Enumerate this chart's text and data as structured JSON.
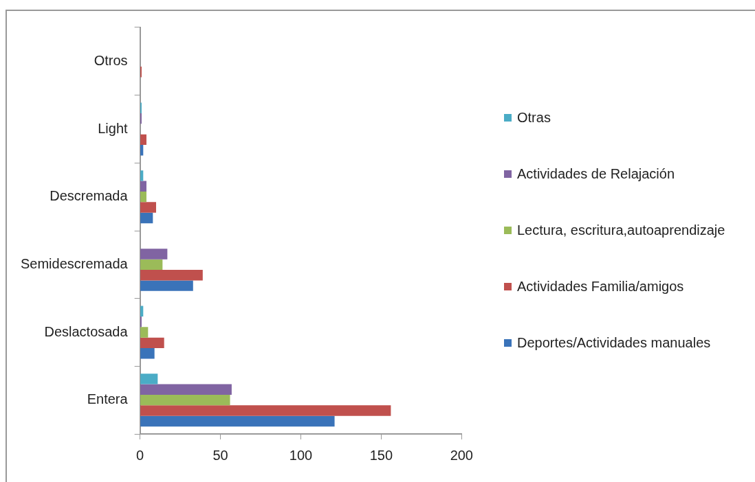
{
  "chart_data": {
    "type": "bar",
    "orientation": "horizontal",
    "categories": [
      "Otros",
      "Light",
      "Descremada",
      "Semidescremada",
      "Deslactosada",
      "Entera"
    ],
    "series": [
      {
        "name": "Otras",
        "color": "#4bacc6",
        "values": [
          0,
          1,
          2,
          0,
          2,
          11
        ]
      },
      {
        "name": "Actividades de Relajación",
        "color": "#8064a2",
        "values": [
          0,
          1,
          4,
          17,
          1,
          57
        ]
      },
      {
        "name": "Lectura, escritura,autoaprendizaje",
        "color": "#9bbb59",
        "values": [
          0,
          0,
          4,
          14,
          5,
          56
        ]
      },
      {
        "name": "Actividades Familia/amigos",
        "color": "#c0504d",
        "values": [
          1,
          4,
          10,
          39,
          15,
          156
        ]
      },
      {
        "name": "Deportes/Actividades manuales",
        "color": "#3a73b9",
        "values": [
          0,
          2,
          8,
          33,
          9,
          121
        ]
      }
    ],
    "xlim": [
      0,
      200
    ],
    "xticks": [
      0,
      50,
      100,
      150,
      200
    ],
    "grid": false,
    "legend": "right"
  }
}
